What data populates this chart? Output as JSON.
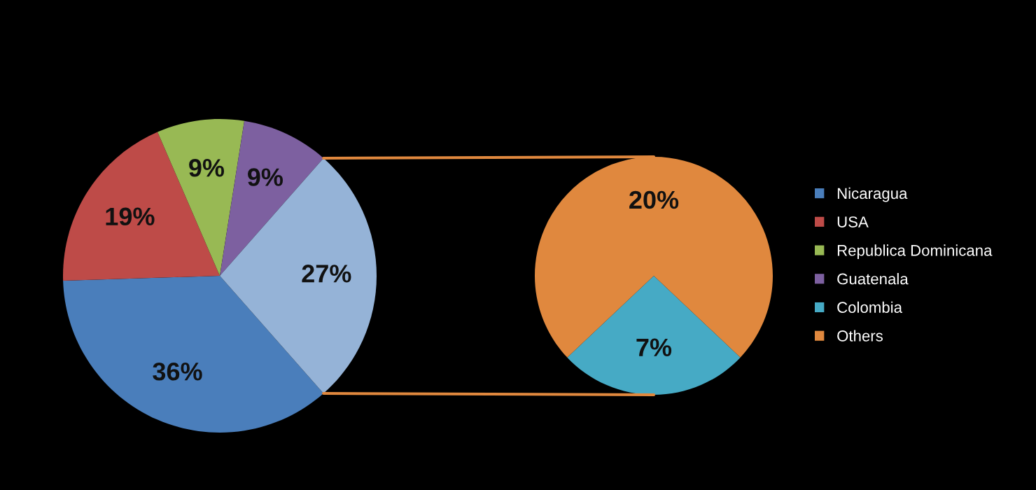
{
  "chart_data": [
    {
      "type": "pie",
      "categories": [
        "Nicaragua",
        "USA",
        "Republica Dominicana",
        "Guatenala",
        null
      ],
      "values": [
        36,
        19,
        9,
        9,
        27
      ],
      "colors": [
        "#4a7ebb",
        "#be4b48",
        "#98b954",
        "#7d60a0",
        "#95b3d7"
      ],
      "value_labels": [
        "36%",
        "19%",
        "9%",
        "9%",
        "27%"
      ],
      "legend": "right"
    },
    {
      "type": "pie",
      "categories": [
        "Colombia",
        "Others"
      ],
      "values": [
        7,
        20
      ],
      "colors": [
        "#46aac5",
        "#e0883e"
      ],
      "value_labels": [
        "7%",
        "20%"
      ],
      "legend": "right"
    }
  ]
}
